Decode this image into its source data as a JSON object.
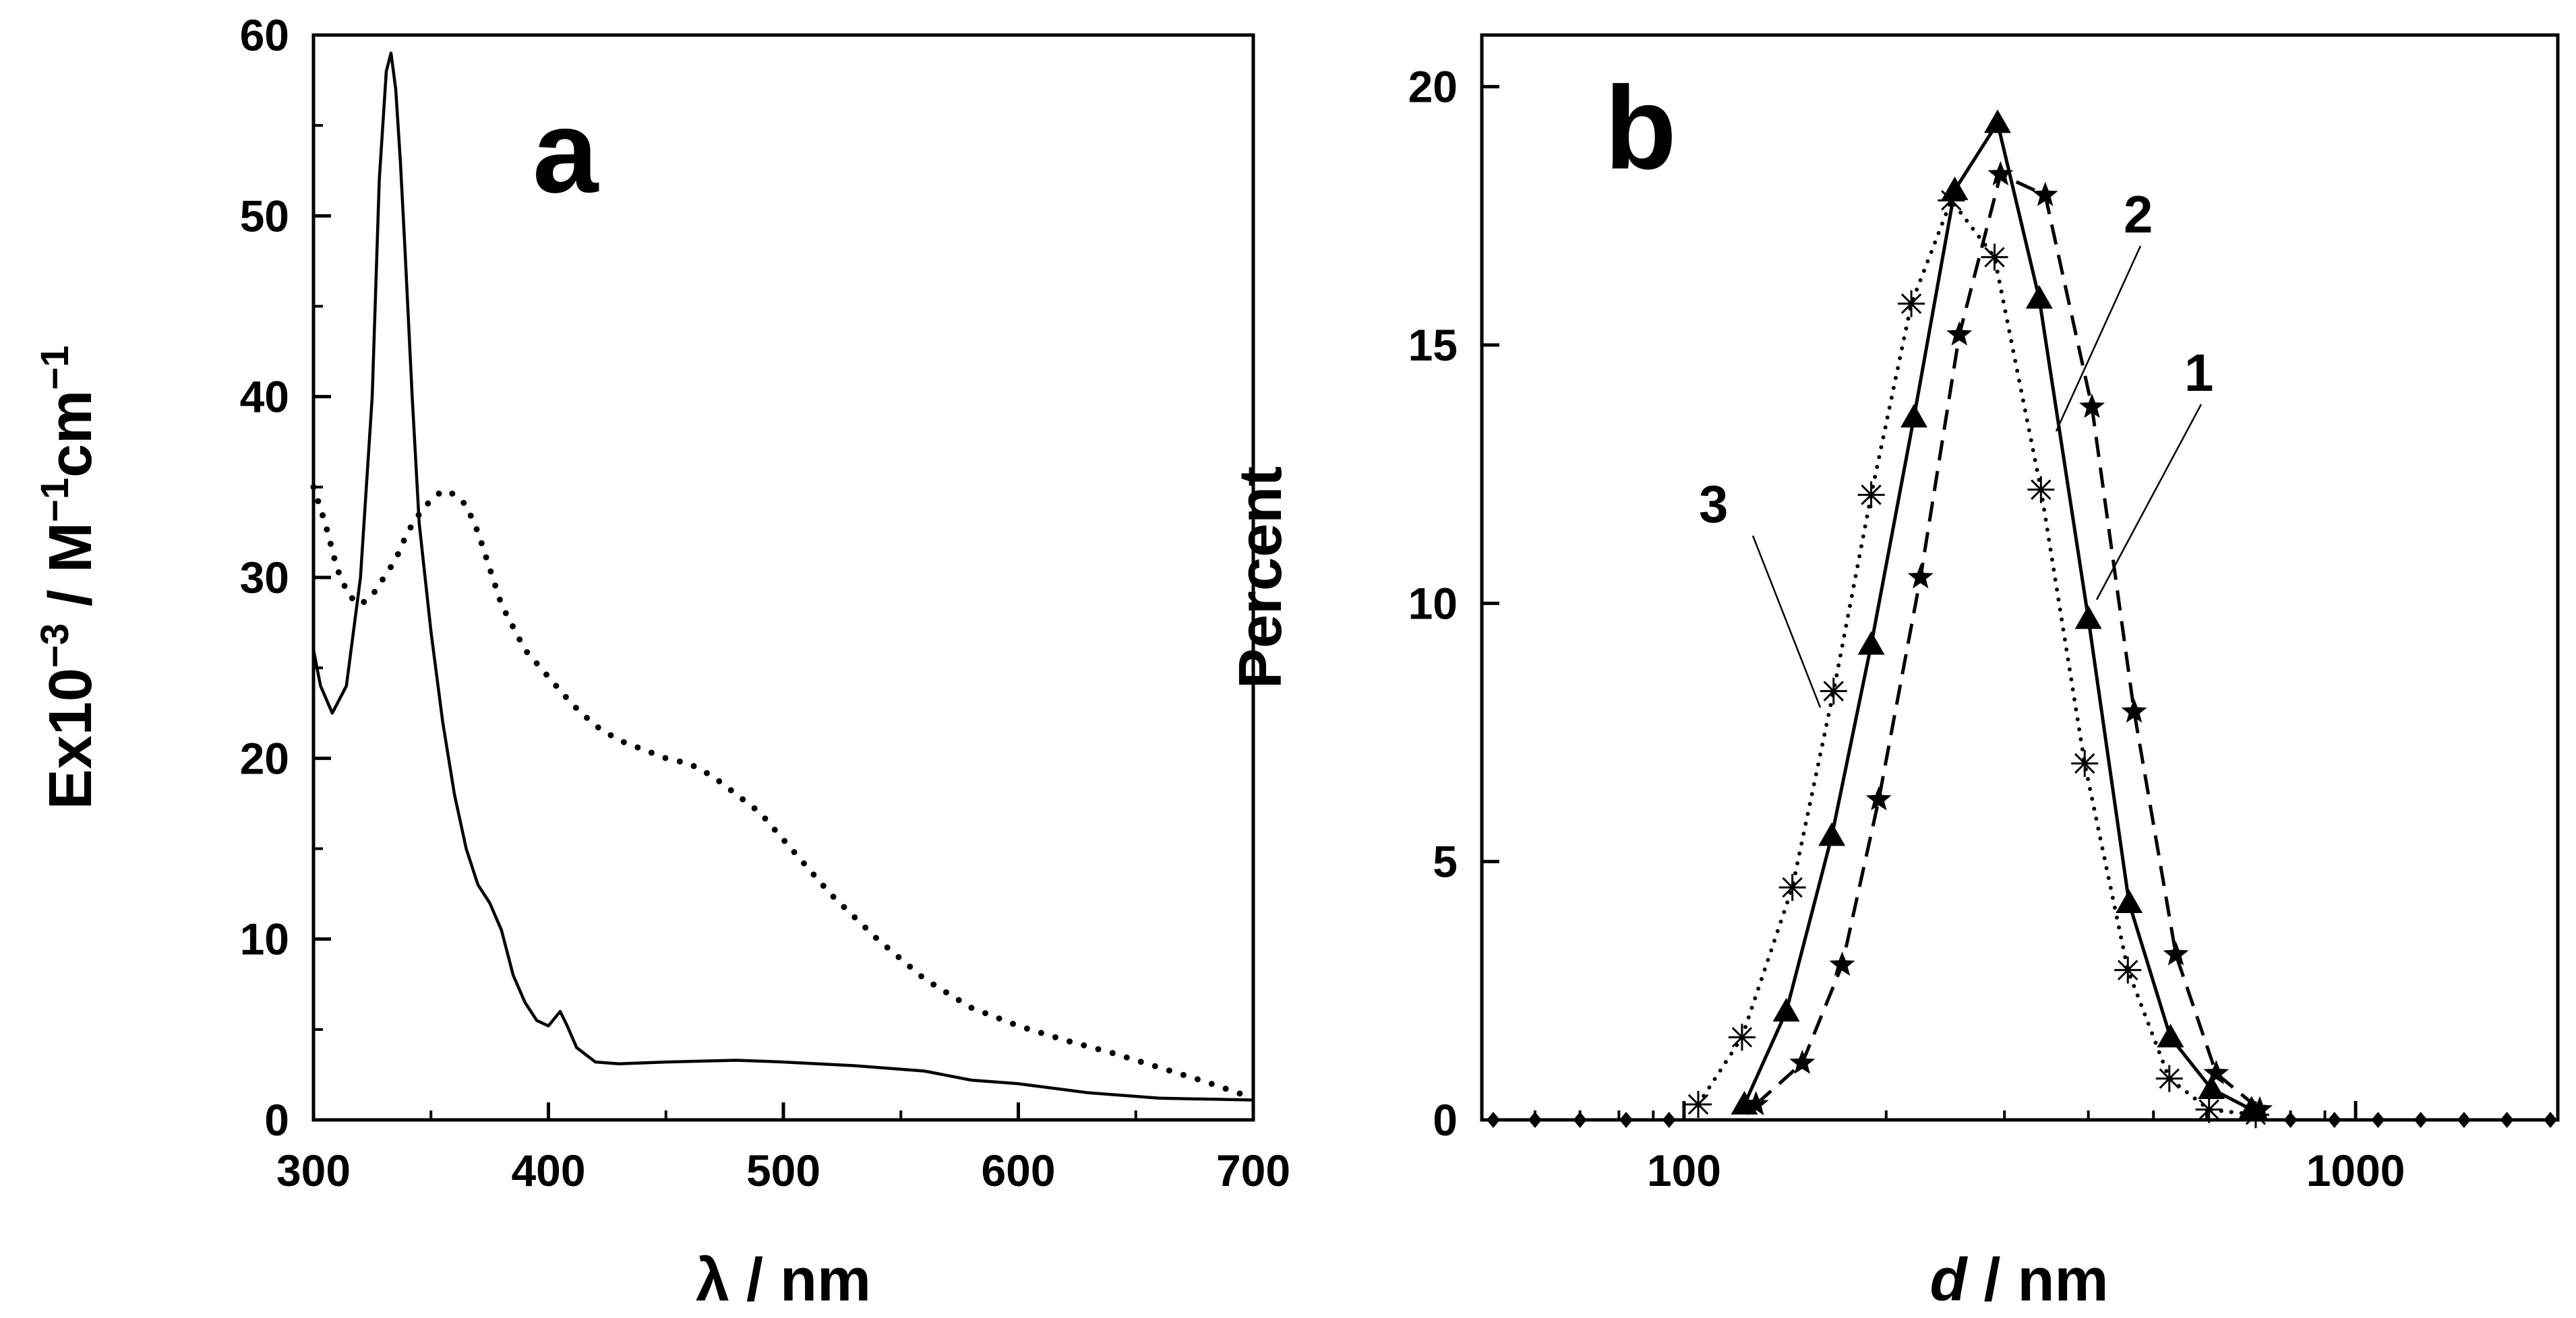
{
  "chart_data": [
    {
      "type": "line",
      "panel_label": "a",
      "xlabel": "λ / nm",
      "ylabel_parts": [
        "Ex10",
        "−3",
        " / M",
        "−1",
        "cm",
        "−1"
      ],
      "xlim": [
        300,
        700
      ],
      "ylim": [
        0,
        60
      ],
      "xticks": [
        300,
        400,
        500,
        600,
        700
      ],
      "yticks": [
        0,
        10,
        20,
        30,
        40,
        50,
        60
      ],
      "series": [
        {
          "style": "solid",
          "x": [
            300,
            303,
            308,
            314,
            320,
            325,
            328,
            331,
            333,
            335,
            337,
            339,
            342,
            345,
            350,
            355,
            360,
            365,
            370,
            375,
            380,
            385,
            390,
            395,
            400,
            405,
            408,
            412,
            420,
            430,
            450,
            480,
            500,
            530,
            560,
            580,
            600,
            630,
            660,
            700
          ],
          "y": [
            26,
            24,
            22.5,
            24,
            30,
            40,
            52,
            58,
            59,
            57,
            53,
            48,
            40,
            33,
            27,
            22,
            18,
            15,
            13,
            12,
            10.5,
            8,
            6.5,
            5.5,
            5.2,
            6,
            5.2,
            4,
            3.2,
            3.1,
            3.2,
            3.3,
            3.2,
            3.0,
            2.7,
            2.2,
            2.0,
            1.5,
            1.2,
            1.1
          ]
        },
        {
          "style": "dotted",
          "x": [
            300,
            305,
            310,
            315,
            320,
            325,
            330,
            335,
            340,
            345,
            350,
            355,
            360,
            365,
            370,
            375,
            380,
            390,
            400,
            410,
            420,
            430,
            440,
            450,
            460,
            470,
            480,
            490,
            500,
            520,
            540,
            560,
            580,
            600,
            620,
            640,
            660,
            680,
            700
          ],
          "y": [
            35,
            33,
            30.5,
            29,
            28.5,
            29,
            30,
            31,
            32.5,
            33.5,
            34.3,
            34.8,
            34.6,
            34,
            32.5,
            30.5,
            28.5,
            26,
            24.5,
            23,
            21.8,
            21,
            20.5,
            20,
            19.7,
            19,
            18,
            17,
            15.5,
            12.5,
            10,
            7.8,
            6.2,
            5.2,
            4.4,
            3.7,
            2.9,
            2.1,
            1.2
          ]
        }
      ]
    },
    {
      "type": "line",
      "panel_label": "b",
      "xlabel_italic": "d",
      "xlabel_rest": " / nm",
      "ylabel": "Percent",
      "xscale": "log",
      "xlim": [
        50,
        2000
      ],
      "ylim": [
        0,
        21
      ],
      "xticks": [
        100,
        1000
      ],
      "yticks": [
        0,
        5,
        10,
        15,
        20
      ],
      "series": [
        {
          "name": "1",
          "style": "solid",
          "marker": "triangle",
          "x": [
            123,
            142,
            166,
            190,
            220,
            253,
            293,
            338,
            400,
            460,
            530,
            610,
            700
          ],
          "y": [
            0.3,
            2.1,
            5.5,
            9.2,
            13.6,
            18,
            19.3,
            15.9,
            9.7,
            4.2,
            1.6,
            0.6,
            0.2
          ]
        },
        {
          "name": "2",
          "style": "dashed",
          "marker": "star",
          "x": [
            128,
            150,
            172,
            195,
            225,
            257,
            296,
            345,
            405,
            468,
            540,
            620,
            720
          ],
          "y": [
            0.3,
            1.1,
            3.0,
            6.2,
            10.5,
            15.2,
            18.3,
            17.9,
            13.8,
            7.9,
            3.2,
            0.9,
            0.2
          ]
        },
        {
          "name": "3",
          "style": "dotted",
          "marker": "asterisk",
          "x": [
            105,
            122,
            145,
            167,
            190,
            218,
            250,
            290,
            340,
            395,
            458,
            528,
            605,
            710
          ],
          "y": [
            0.3,
            1.6,
            4.5,
            8.3,
            12.1,
            15.8,
            17.8,
            16.7,
            12.2,
            6.9,
            2.9,
            0.8,
            0.2,
            0.1
          ]
        }
      ],
      "baseline_points": {
        "x": [
          52,
          60,
          70,
          82,
          95,
          800,
          930,
          1080,
          1250,
          1450,
          1680,
          1950
        ],
        "y": 0
      }
    }
  ]
}
